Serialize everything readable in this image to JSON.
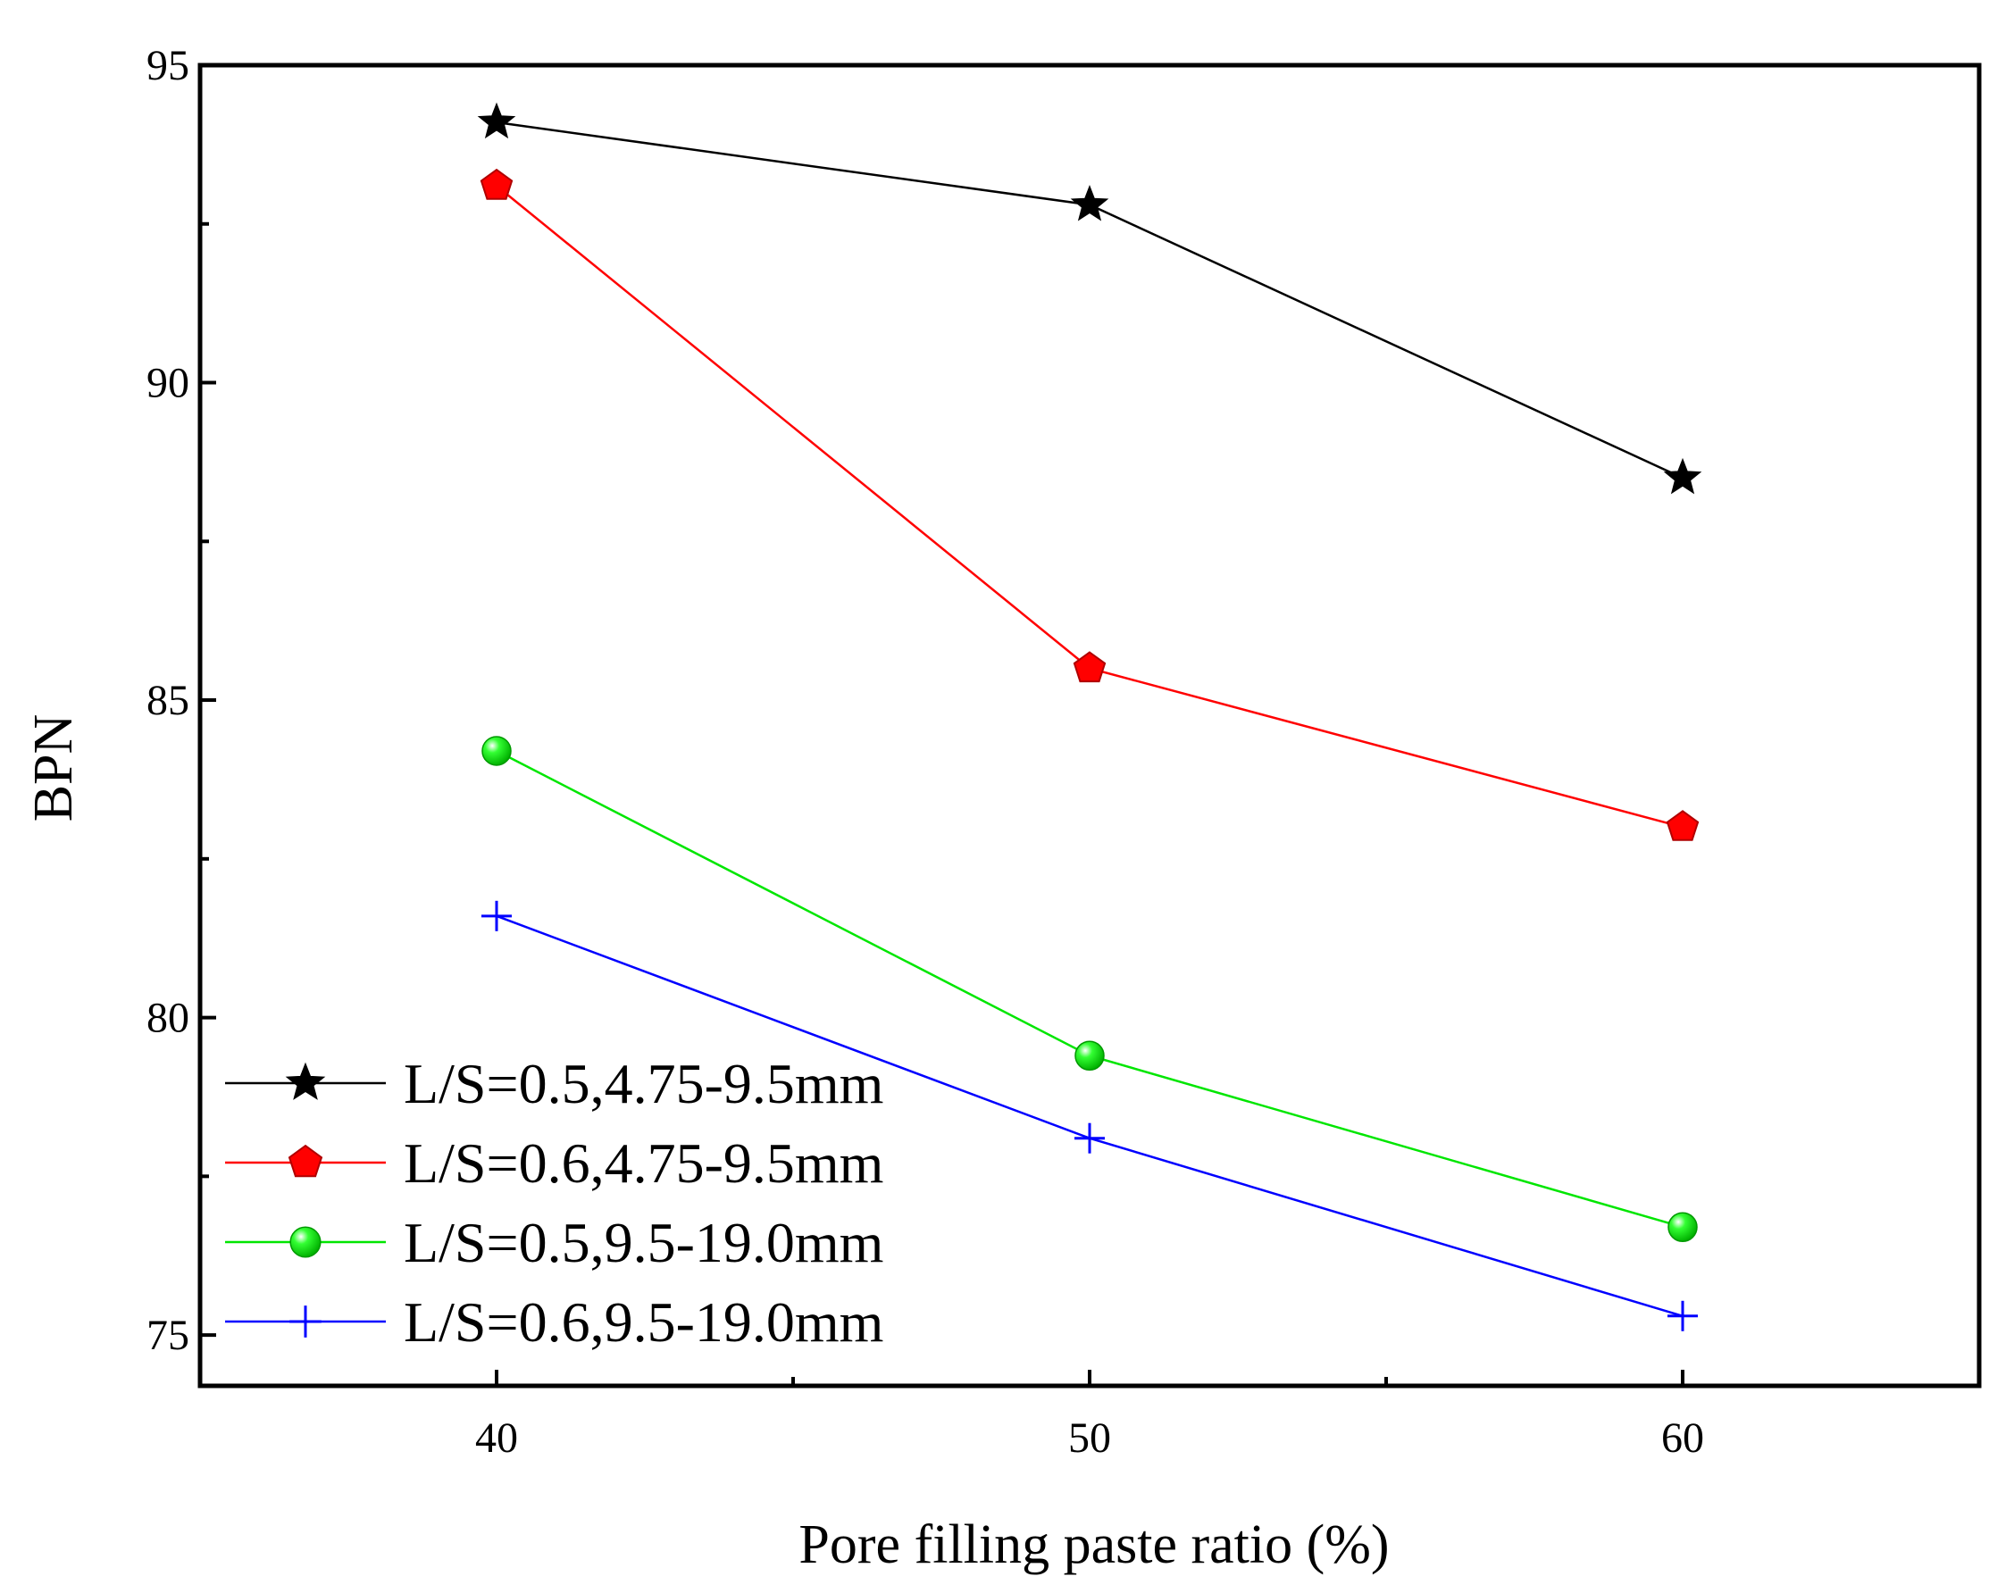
{
  "chart_data": {
    "type": "line",
    "title": "",
    "xlabel": "Pore filling paste ratio (%)",
    "ylabel": "BPN",
    "x": [
      40,
      50,
      60
    ],
    "xlim": [
      35,
      65
    ],
    "ylim": [
      74.2,
      95
    ],
    "xticks": [
      40,
      50,
      60
    ],
    "xtick_labels": [
      "40",
      "50",
      "60"
    ],
    "yticks": [
      75,
      80,
      85,
      90,
      95
    ],
    "ytick_labels": [
      "75",
      "80",
      "85",
      "90",
      "95"
    ],
    "grid": false,
    "legend_position": "bottom-left",
    "series": [
      {
        "name": "L/S=0.5,4.75-9.5mm",
        "color": "#000000",
        "marker": "star",
        "values": [
          94.1,
          92.8,
          88.5
        ]
      },
      {
        "name": "L/S=0.6,4.75-9.5mm",
        "color": "#ff0000",
        "marker": "pentagon",
        "values": [
          93.1,
          85.5,
          83.0
        ]
      },
      {
        "name": "L/S=0.5,9.5-19.0mm",
        "color": "#00e600",
        "marker": "sphere",
        "values": [
          84.2,
          79.4,
          76.7
        ]
      },
      {
        "name": "L/S=0.6,9.5-19.0mm",
        "color": "#0000ff",
        "marker": "plus",
        "values": [
          81.6,
          78.1,
          75.3
        ]
      }
    ]
  }
}
